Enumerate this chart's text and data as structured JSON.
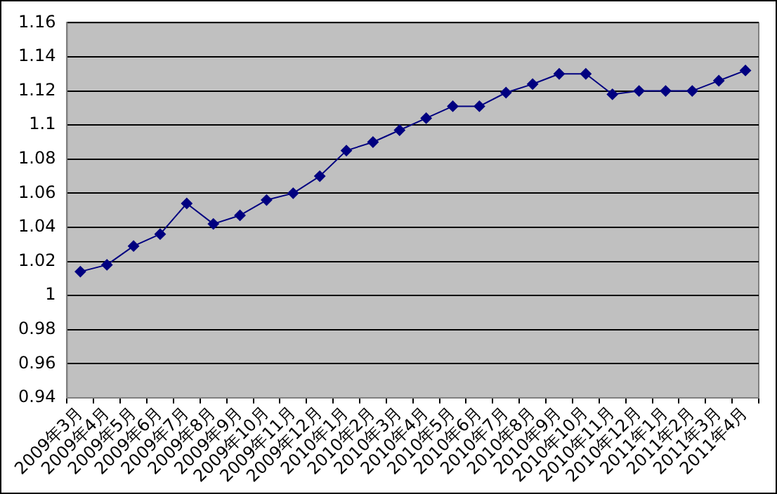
{
  "chart_data": {
    "type": "line",
    "categories": [
      "2009年3月",
      "2009年4月",
      "2009年5月",
      "2009年6月",
      "2009年7月",
      "2009年8月",
      "2009年9月",
      "2009年10月",
      "2009年11月",
      "2009年12月",
      "2010年1月",
      "2010年2月",
      "2010年3月",
      "2010年4月",
      "2010年5月",
      "2010年6月",
      "2010年7月",
      "2010年8月",
      "2010年9月",
      "2010年10月",
      "2010年11月",
      "2010年12月",
      "2011年1月",
      "2011年2月",
      "2011年3月",
      "2011年4月"
    ],
    "series": [
      {
        "color": "#000080",
        "values": [
          1.014,
          1.018,
          1.029,
          1.036,
          1.054,
          1.042,
          1.047,
          1.056,
          1.06,
          1.07,
          1.085,
          1.09,
          1.097,
          1.104,
          1.111,
          1.111,
          1.119,
          1.124,
          1.13,
          1.13,
          1.118,
          1.12,
          1.12,
          1.12,
          1.126,
          1.132
        ]
      }
    ],
    "ylim": [
      0.94,
      1.16
    ],
    "yticks": [
      0.94,
      0.96,
      0.98,
      1,
      1.02,
      1.04,
      1.06,
      1.08,
      1.1,
      1.12,
      1.14,
      1.16
    ],
    "grid": "y",
    "legend": false,
    "marker": "diamond",
    "line_style": "solid"
  }
}
